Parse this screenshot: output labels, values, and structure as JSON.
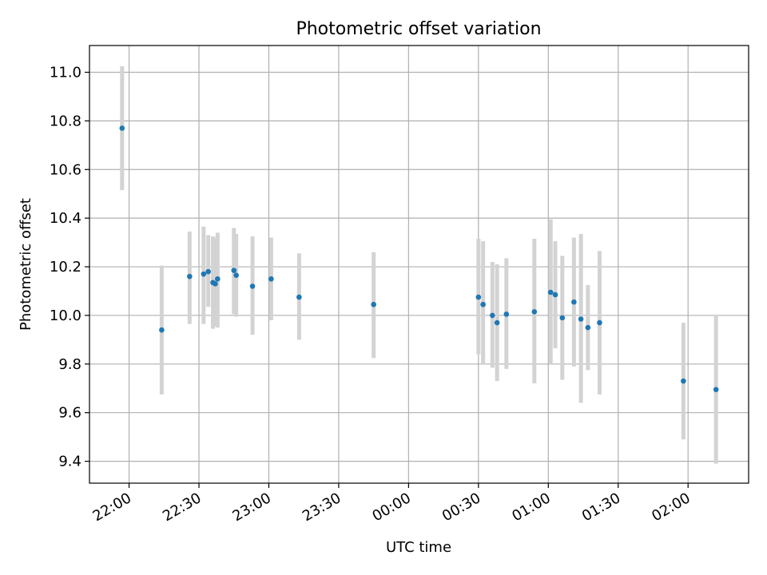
{
  "chart_data": {
    "type": "scatter",
    "title": "Photometric offset variation",
    "xlabel": "UTC time",
    "ylabel": "Photometric offset",
    "x_axis_format": "time HH:MM",
    "xlim": [
      "21:43",
      "02:26"
    ],
    "ylim": [
      9.31,
      11.11
    ],
    "grid": true,
    "x_ticks": [
      "22:00",
      "22:30",
      "23:00",
      "23:30",
      "00:00",
      "00:30",
      "01:00",
      "01:30",
      "02:00"
    ],
    "y_ticks": [
      "9.4",
      "9.6",
      "9.8",
      "10.0",
      "10.2",
      "10.4",
      "10.6",
      "10.8",
      "11.0"
    ],
    "colors": {
      "marker": "#1f77b4",
      "errorbar": "#d3d3d3",
      "grid": "#b0b0b0"
    },
    "series": [
      {
        "points": [
          {
            "x": "21:57",
            "y": 10.77,
            "lo": 10.515,
            "hi": 11.025
          },
          {
            "x": "22:14",
            "y": 9.94,
            "lo": 9.675,
            "hi": 10.205
          },
          {
            "x": "22:26",
            "y": 10.16,
            "lo": 9.965,
            "hi": 10.345
          },
          {
            "x": "22:32",
            "y": 10.17,
            "lo": 9.965,
            "hi": 10.365
          },
          {
            "x": "22:34",
            "y": 10.18,
            "lo": 10.035,
            "hi": 10.33
          },
          {
            "x": "22:36",
            "y": 10.135,
            "lo": 9.945,
            "hi": 10.325
          },
          {
            "x": "22:37",
            "y": 10.13,
            "lo": 9.955,
            "hi": 10.32
          },
          {
            "x": "22:38",
            "y": 10.15,
            "lo": 9.95,
            "hi": 10.34
          },
          {
            "x": "22:45",
            "y": 10.185,
            "lo": 10.005,
            "hi": 10.36
          },
          {
            "x": "22:46",
            "y": 10.165,
            "lo": 9.995,
            "hi": 10.335
          },
          {
            "x": "22:53",
            "y": 10.12,
            "lo": 9.92,
            "hi": 10.325
          },
          {
            "x": "23:01",
            "y": 10.15,
            "lo": 9.98,
            "hi": 10.32
          },
          {
            "x": "23:13",
            "y": 10.075,
            "lo": 9.9,
            "hi": 10.255
          },
          {
            "x": "23:45",
            "y": 10.045,
            "lo": 9.825,
            "hi": 10.26
          },
          {
            "x": "00:30",
            "y": 10.075,
            "lo": 9.84,
            "hi": 10.315
          },
          {
            "x": "00:32",
            "y": 10.045,
            "lo": 9.8,
            "hi": 10.305
          },
          {
            "x": "00:36",
            "y": 10.0,
            "lo": 9.785,
            "hi": 10.22
          },
          {
            "x": "00:38",
            "y": 9.97,
            "lo": 9.73,
            "hi": 10.21
          },
          {
            "x": "00:42",
            "y": 10.005,
            "lo": 9.78,
            "hi": 10.235
          },
          {
            "x": "00:54",
            "y": 10.015,
            "lo": 9.72,
            "hi": 10.315
          },
          {
            "x": "01:01",
            "y": 10.095,
            "lo": 9.8,
            "hi": 10.395
          },
          {
            "x": "01:03",
            "y": 10.085,
            "lo": 9.865,
            "hi": 10.305
          },
          {
            "x": "01:06",
            "y": 9.99,
            "lo": 9.735,
            "hi": 10.245
          },
          {
            "x": "01:11",
            "y": 10.055,
            "lo": 9.79,
            "hi": 10.32
          },
          {
            "x": "01:14",
            "y": 9.985,
            "lo": 9.64,
            "hi": 10.335
          },
          {
            "x": "01:17",
            "y": 9.95,
            "lo": 9.775,
            "hi": 10.125
          },
          {
            "x": "01:22",
            "y": 9.97,
            "lo": 9.675,
            "hi": 10.265
          },
          {
            "x": "01:58",
            "y": 9.73,
            "lo": 9.49,
            "hi": 9.97
          },
          {
            "x": "02:12",
            "y": 9.695,
            "lo": 9.39,
            "hi": 10.0
          }
        ]
      }
    ]
  }
}
